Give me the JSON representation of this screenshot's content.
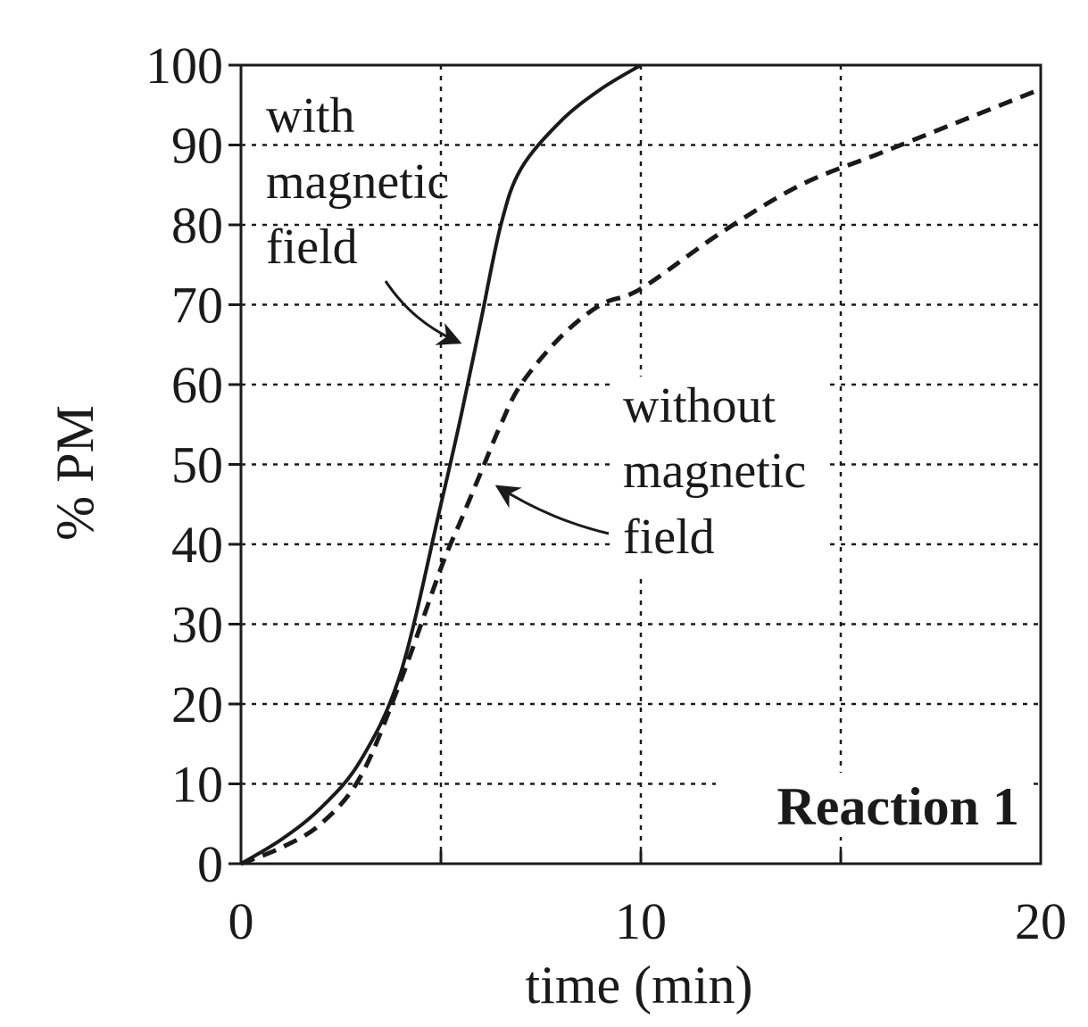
{
  "chart_data": {
    "type": "line",
    "xlabel": "time (min)",
    "ylabel": "% PM",
    "xlim": [
      0,
      20
    ],
    "ylim": [
      0,
      100
    ],
    "xticks": [
      0,
      10,
      20
    ],
    "yticks": [
      0,
      10,
      20,
      30,
      40,
      50,
      60,
      70,
      80,
      90,
      100
    ],
    "grid": true,
    "panel_label": "Reaction 1",
    "series": [
      {
        "label_lines": [
          "with",
          "magnetic",
          "field"
        ],
        "line_style": "solid",
        "color": "#1a1a1a",
        "x": [
          0,
          1,
          2,
          3,
          4,
          5,
          5.5,
          6,
          6.5,
          7,
          8,
          9,
          10
        ],
        "y": [
          0,
          3,
          7,
          13,
          24,
          45,
          56,
          68,
          80,
          87,
          93,
          97,
          100
        ]
      },
      {
        "label_lines": [
          "without",
          "magnetic",
          "field"
        ],
        "line_style": "dashed",
        "color": "#1a1a1a",
        "x": [
          0,
          1,
          2,
          3,
          4,
          5,
          5.5,
          6,
          6.5,
          7,
          8,
          9,
          10,
          12,
          14,
          16,
          18,
          20
        ],
        "y": [
          0,
          2,
          5,
          11,
          23,
          37,
          43,
          49,
          55,
          60,
          66,
          70,
          72,
          79,
          85,
          89,
          93,
          97
        ]
      }
    ]
  }
}
